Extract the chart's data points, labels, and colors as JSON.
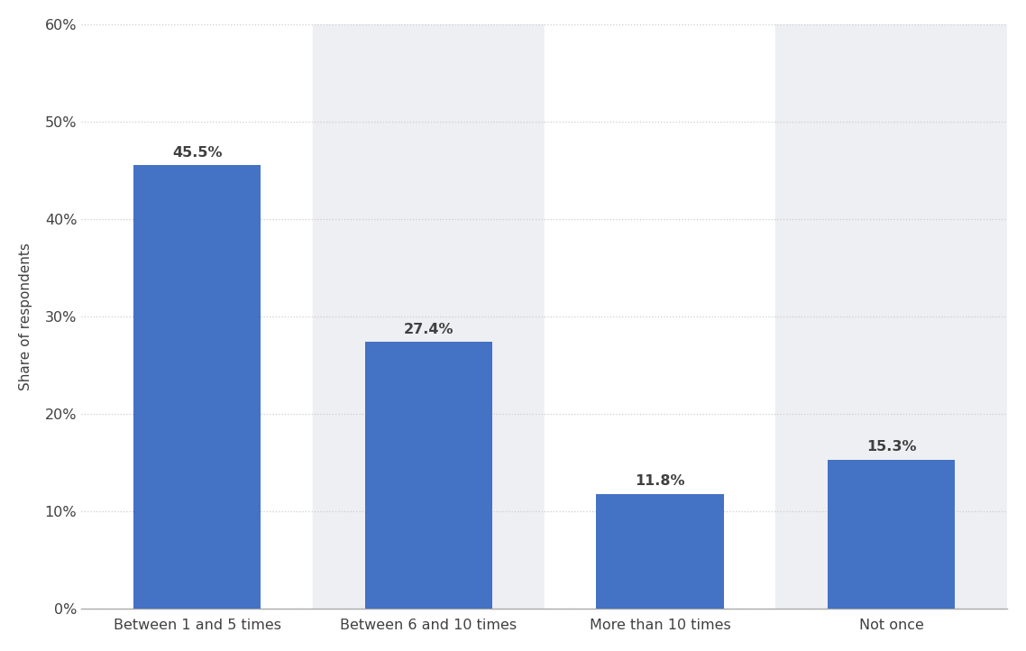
{
  "categories": [
    "Between 1 and 5 times",
    "Between 6 and 10 times",
    "More than 10 times",
    "Not once"
  ],
  "values": [
    45.5,
    27.4,
    11.8,
    15.3
  ],
  "bar_color": "#4472c4",
  "ylabel": "Share of respondents",
  "ylim": [
    0,
    60
  ],
  "yticks": [
    0,
    10,
    20,
    30,
    40,
    50,
    60
  ],
  "ytick_labels": [
    "0%",
    "10%",
    "20%",
    "30%",
    "40%",
    "50%",
    "60%"
  ],
  "figure_bg_color": "#ffffff",
  "col_bg_white": "#ffffff",
  "col_bg_grey": "#eeeff3",
  "label_fontsize": 11.5,
  "ylabel_fontsize": 11,
  "tick_fontsize": 11.5,
  "annotation_fontsize": 11.5,
  "bar_width": 0.55,
  "grid_color": "#cccccc",
  "text_color": "#404040",
  "spine_color": "#aaaaaa"
}
